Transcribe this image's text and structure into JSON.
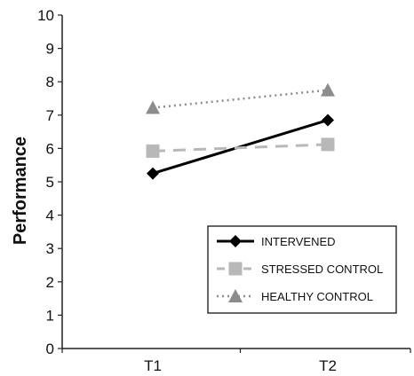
{
  "chart_data": {
    "type": "line",
    "title": "",
    "xlabel": "",
    "ylabel": "Performance",
    "categories": [
      "T1",
      "T2"
    ],
    "ylim": [
      0,
      10
    ],
    "yticks": [
      "0",
      "1",
      "2",
      "3",
      "4",
      "5",
      "6",
      "7",
      "8",
      "9",
      "10"
    ],
    "grid": false,
    "legend_position": "bottom-right",
    "series": [
      {
        "name": "INTERVENED",
        "values": [
          5.25,
          6.85
        ],
        "color": "#000000",
        "line": "solid",
        "marker": "diamond"
      },
      {
        "name": "STRESSED CONTROL",
        "values": [
          5.92,
          6.12
        ],
        "color": "#b8b8b8",
        "line": "dashed",
        "marker": "square"
      },
      {
        "name": "HEALTHY CONTROL",
        "values": [
          7.22,
          7.75
        ],
        "color": "#8c8c8c",
        "line": "dotted",
        "marker": "triangle"
      }
    ]
  }
}
